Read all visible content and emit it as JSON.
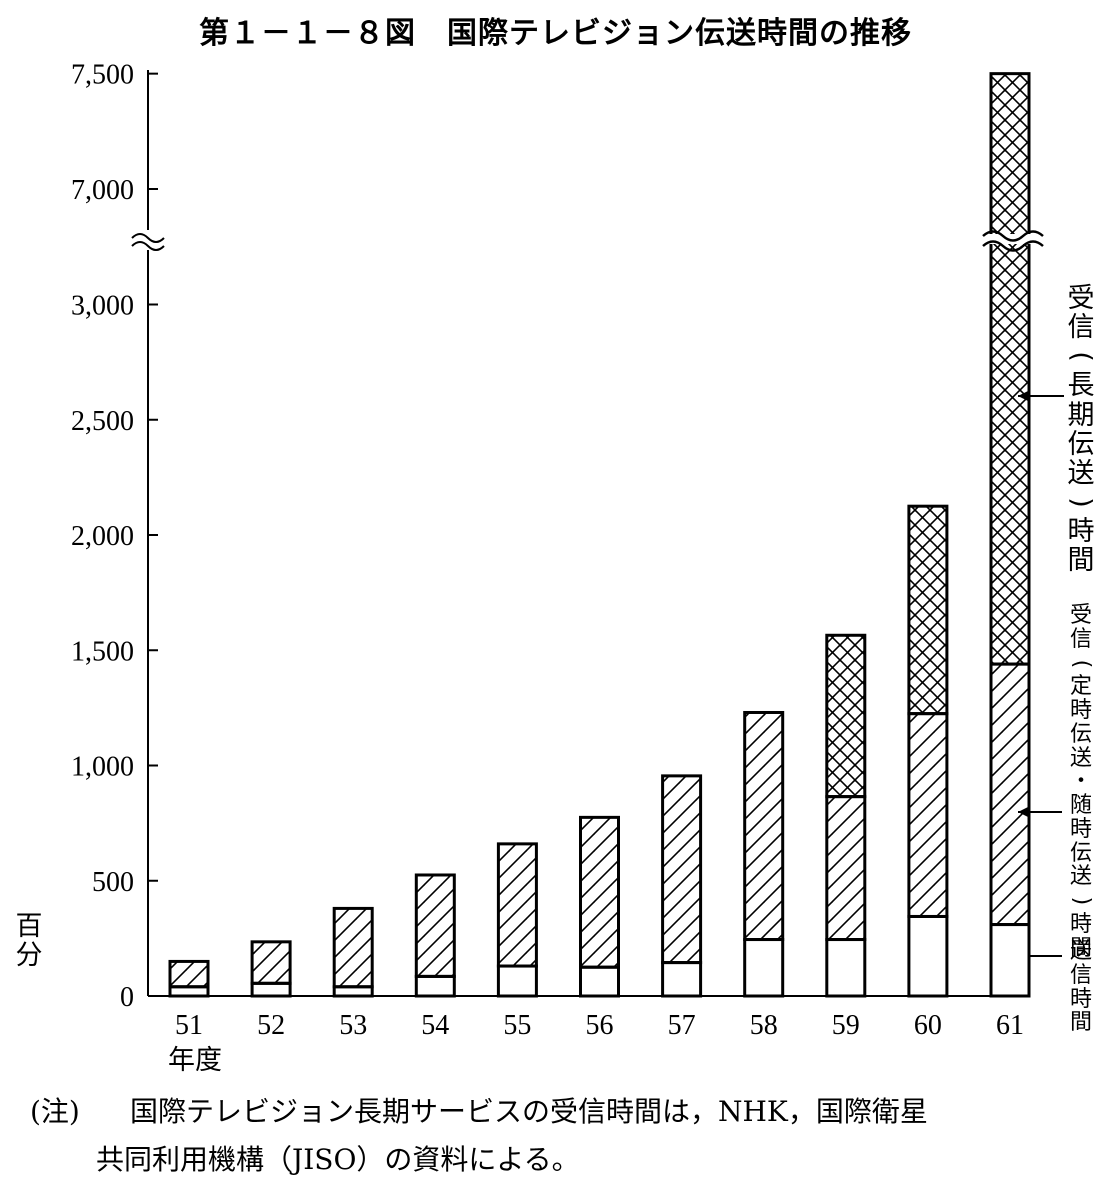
{
  "title": "第１－１－８図　国際テレビジョン伝送時間の推移",
  "unit_label": "百分",
  "xaxis_label": "年度",
  "note": {
    "prefix": "(注)",
    "line1": "国際テレビジョン長期サービスの受信時間は，NHK，国際衛星",
    "line2": "共同利用機構（JISO）の資料による。"
  },
  "legend": {
    "long": "受信(長期伝送)時間",
    "regular": "受信(定時伝送・随時伝送)時間",
    "send": "送信時間"
  },
  "chart_data": {
    "type": "bar",
    "stacked": true,
    "axis_break": {
      "from": 3300,
      "to": 6800
    },
    "ylim": [
      0,
      7500
    ],
    "yticks": [
      "0",
      "500",
      "1,000",
      "1,500",
      "2,000",
      "2,500",
      "3,000",
      "7,000",
      "7,500"
    ],
    "ytick_values": [
      0,
      500,
      1000,
      1500,
      2000,
      2500,
      3000,
      7000,
      7500
    ],
    "categories": [
      "51",
      "52",
      "53",
      "54",
      "55",
      "56",
      "57",
      "58",
      "59",
      "60",
      "61"
    ],
    "series": [
      {
        "name": "送信時間",
        "pattern": "none",
        "values": [
          40,
          55,
          40,
          85,
          130,
          125,
          145,
          245,
          245,
          345,
          310
        ]
      },
      {
        "name": "受信(定時伝送・随時伝送)時間",
        "pattern": "hatch",
        "values": [
          110,
          180,
          340,
          440,
          530,
          650,
          810,
          985,
          620,
          880,
          1130
        ]
      },
      {
        "name": "受信(長期伝送)時間",
        "pattern": "crosshatch",
        "values": [
          0,
          0,
          0,
          0,
          0,
          0,
          0,
          0,
          700,
          900,
          6060
        ]
      }
    ],
    "grid": false
  }
}
